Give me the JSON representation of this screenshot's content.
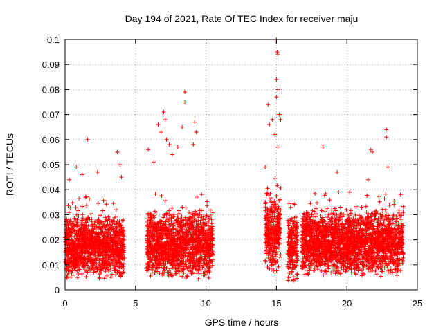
{
  "chart_data": {
    "type": "scatter",
    "title": "Day 194 of 2021, Rate Of TEC Index for receiver maju",
    "xlabel": "GPS time / hours",
    "ylabel": "ROTI / TECUs",
    "xlim": [
      0,
      25
    ],
    "ylim": [
      0,
      0.1
    ],
    "xticks": [
      0,
      5,
      10,
      15,
      20,
      25
    ],
    "xtick_labels": [
      "0",
      "5",
      "10",
      "15",
      "20",
      "25"
    ],
    "yticks": [
      0,
      0.01,
      0.02,
      0.03,
      0.04,
      0.05,
      0.06,
      0.07,
      0.08,
      0.09,
      0.1
    ],
    "ytick_labels": [
      "0",
      "0.01",
      "0.02",
      "0.03",
      "0.04",
      "0.05",
      "0.06",
      "0.07",
      "0.08",
      "0.09",
      "0.1"
    ],
    "grid": true,
    "marker": "+",
    "color": "#ff0000",
    "segments": [
      {
        "x_start": 0.0,
        "x_end": 4.2,
        "base_min": 0.004,
        "base_max": 0.03
      },
      {
        "x_start": 5.8,
        "x_end": 10.5,
        "base_min": 0.004,
        "base_max": 0.032
      },
      {
        "x_start": 14.2,
        "x_end": 15.3,
        "base_min": 0.006,
        "base_max": 0.04
      },
      {
        "x_start": 15.8,
        "x_end": 16.5,
        "base_min": 0.003,
        "base_max": 0.03
      },
      {
        "x_start": 16.8,
        "x_end": 24.0,
        "base_min": 0.005,
        "base_max": 0.032
      }
    ],
    "outliers": [
      {
        "x": 1.6,
        "y": 0.06
      },
      {
        "x": 0.3,
        "y": 0.044
      },
      {
        "x": 0.8,
        "y": 0.049
      },
      {
        "x": 1.2,
        "y": 0.046
      },
      {
        "x": 2.3,
        "y": 0.047
      },
      {
        "x": 3.7,
        "y": 0.055
      },
      {
        "x": 3.9,
        "y": 0.05
      },
      {
        "x": 4.0,
        "y": 0.045
      },
      {
        "x": 5.9,
        "y": 0.056
      },
      {
        "x": 6.3,
        "y": 0.051
      },
      {
        "x": 6.6,
        "y": 0.066
      },
      {
        "x": 6.8,
        "y": 0.063
      },
      {
        "x": 7.0,
        "y": 0.071
      },
      {
        "x": 7.1,
        "y": 0.068
      },
      {
        "x": 7.2,
        "y": 0.06
      },
      {
        "x": 7.4,
        "y": 0.058
      },
      {
        "x": 8.5,
        "y": 0.079
      },
      {
        "x": 8.5,
        "y": 0.075
      },
      {
        "x": 8.3,
        "y": 0.065
      },
      {
        "x": 9.2,
        "y": 0.067
      },
      {
        "x": 9.3,
        "y": 0.063
      },
      {
        "x": 9.1,
        "y": 0.058
      },
      {
        "x": 8.0,
        "y": 0.057
      },
      {
        "x": 7.6,
        "y": 0.054
      },
      {
        "x": 14.2,
        "y": 0.049
      },
      {
        "x": 14.4,
        "y": 0.074
      },
      {
        "x": 14.5,
        "y": 0.066
      },
      {
        "x": 14.7,
        "y": 0.068
      },
      {
        "x": 15.0,
        "y": 0.1
      },
      {
        "x": 15.05,
        "y": 0.095
      },
      {
        "x": 15.1,
        "y": 0.094
      },
      {
        "x": 15.0,
        "y": 0.084
      },
      {
        "x": 15.1,
        "y": 0.08
      },
      {
        "x": 15.0,
        "y": 0.077
      },
      {
        "x": 15.2,
        "y": 0.07
      },
      {
        "x": 15.3,
        "y": 0.068
      },
      {
        "x": 14.9,
        "y": 0.062
      },
      {
        "x": 15.1,
        "y": 0.057
      },
      {
        "x": 18.3,
        "y": 0.057
      },
      {
        "x": 19.3,
        "y": 0.047
      },
      {
        "x": 21.7,
        "y": 0.056
      },
      {
        "x": 21.8,
        "y": 0.055
      },
      {
        "x": 22.8,
        "y": 0.064
      },
      {
        "x": 22.8,
        "y": 0.061
      },
      {
        "x": 22.9,
        "y": 0.049
      },
      {
        "x": 21.5,
        "y": 0.044
      },
      {
        "x": 20.2,
        "y": 0.039
      },
      {
        "x": 23.8,
        "y": 0.038
      }
    ]
  }
}
